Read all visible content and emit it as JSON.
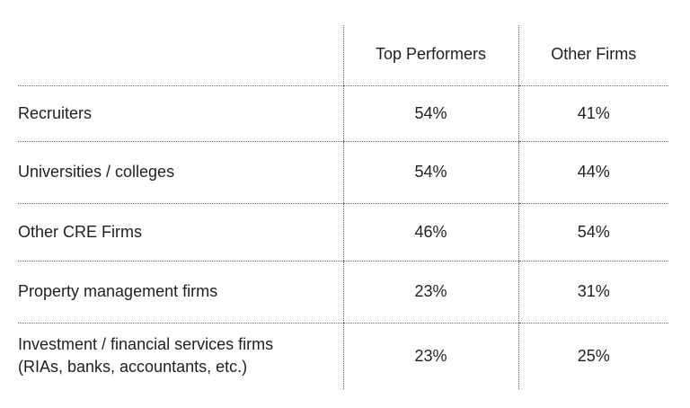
{
  "table": {
    "columns": [
      "",
      "Top Performers",
      "Other Firms"
    ],
    "rows": [
      {
        "label": "Recruiters",
        "top": "54%",
        "other": "41%"
      },
      {
        "label": "Universities / colleges",
        "top": "54%",
        "other": "44%"
      },
      {
        "label": "Other CRE Firms",
        "top": "46%",
        "other": "54%"
      },
      {
        "label": "Property management firms",
        "top": "23%",
        "other": "31%"
      },
      {
        "label_lines": [
          "Investment / financial services firms",
          "(RIAs, banks, accountants, etc.)"
        ],
        "top": "23%",
        "other": "25%"
      }
    ]
  }
}
